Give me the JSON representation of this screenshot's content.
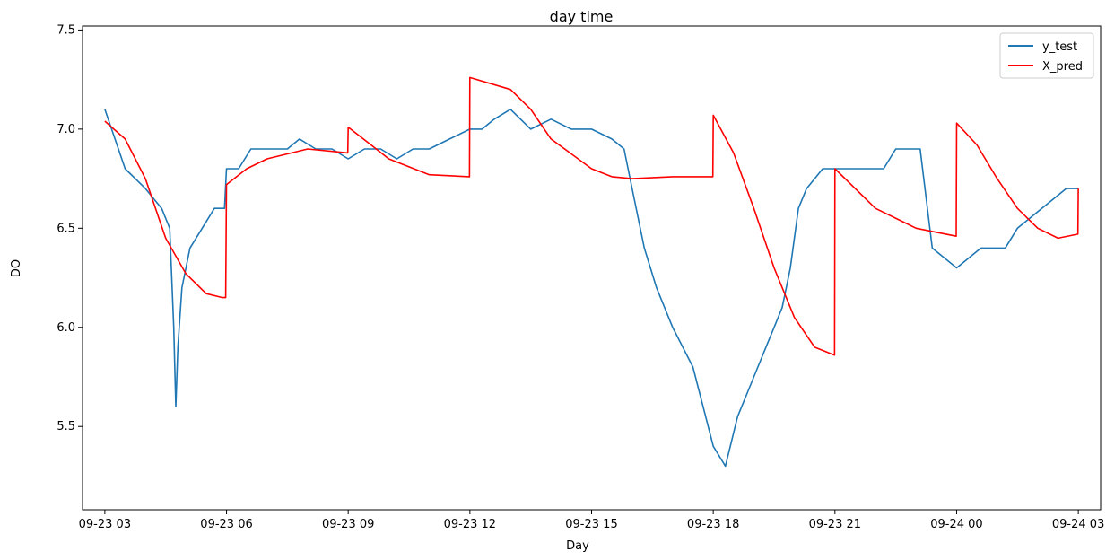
{
  "chart_data": {
    "type": "line",
    "title": "day time",
    "xlabel": "Day",
    "ylabel": "DO",
    "x_ticks": [
      "09-23 03",
      "09-23 06",
      "09-23 09",
      "09-23 12",
      "09-23 15",
      "09-23 18",
      "09-23 21",
      "09-24 00",
      "09-24 03"
    ],
    "y_ticks": [
      "5.5",
      "6.0",
      "6.5",
      "7.0",
      "7.5"
    ],
    "ylim": [
      5.08,
      7.52
    ],
    "xlim_hours": [
      -0.55,
      24.55
    ],
    "grid": false,
    "legend_position": "top-right",
    "series": [
      {
        "name": "y_test",
        "color": "#1f77b4",
        "x_hours": [
          0.0,
          0.5,
          1.0,
          1.4,
          1.6,
          1.7,
          1.75,
          1.8,
          1.9,
          2.1,
          2.4,
          2.7,
          2.95,
          3.0,
          3.3,
          3.6,
          3.9,
          4.2,
          4.5,
          4.8,
          5.2,
          5.6,
          6.0,
          6.4,
          6.8,
          7.2,
          7.6,
          8.0,
          8.5,
          9.0,
          9.3,
          9.6,
          10.0,
          10.5,
          11.0,
          11.5,
          12.0,
          12.5,
          12.8,
          13.0,
          13.3,
          13.6,
          14.0,
          14.5,
          15.0,
          15.3,
          15.6,
          15.9,
          16.1,
          16.3,
          16.5,
          16.7,
          16.9,
          17.1,
          17.3,
          17.5,
          17.7,
          17.9,
          18.0,
          18.3,
          18.6,
          18.9,
          19.2,
          19.5,
          19.8,
          20.1,
          20.4,
          20.7,
          21.0,
          21.3,
          21.6,
          21.9,
          22.2,
          22.5,
          22.8,
          23.1,
          23.4,
          23.7,
          24.0
        ],
        "values": [
          7.1,
          6.8,
          6.7,
          6.6,
          6.5,
          6.0,
          5.6,
          5.9,
          6.2,
          6.4,
          6.5,
          6.6,
          6.6,
          6.8,
          6.8,
          6.9,
          6.9,
          6.9,
          6.9,
          6.95,
          6.9,
          6.9,
          6.85,
          6.9,
          6.9,
          6.85,
          6.9,
          6.9,
          6.95,
          7.0,
          7.0,
          7.05,
          7.1,
          7.0,
          7.05,
          7.0,
          7.0,
          6.95,
          6.9,
          6.7,
          6.4,
          6.2,
          6.0,
          5.8,
          5.4,
          5.3,
          5.55,
          5.7,
          5.8,
          5.9,
          6.0,
          6.1,
          6.3,
          6.6,
          6.7,
          6.75,
          6.8,
          6.8,
          6.8,
          6.8,
          6.8,
          6.8,
          6.8,
          6.9,
          6.9,
          6.9,
          6.4,
          6.35,
          6.3,
          6.35,
          6.4,
          6.4,
          6.4,
          6.5,
          6.55,
          6.6,
          6.65,
          6.7,
          6.7
        ]
      },
      {
        "name": "X_pred",
        "color": "#ff0000",
        "x_hours": [
          0.0,
          0.5,
          1.0,
          1.5,
          2.0,
          2.5,
          2.9,
          2.98,
          3.0,
          3.5,
          4.0,
          5.0,
          5.99,
          6.0,
          6.5,
          7.0,
          8.0,
          8.99,
          9.0,
          10.0,
          10.5,
          11.0,
          12.0,
          12.5,
          13.0,
          14.0,
          14.99,
          15.0,
          15.5,
          16.0,
          16.5,
          17.0,
          17.5,
          17.99,
          18.0,
          18.5,
          19.0,
          20.0,
          20.99,
          21.0,
          21.5,
          22.0,
          22.5,
          23.0,
          23.5,
          23.99,
          24.0
        ],
        "values": [
          7.04,
          6.95,
          6.75,
          6.45,
          6.27,
          6.17,
          6.15,
          6.15,
          6.72,
          6.8,
          6.85,
          6.9,
          6.88,
          7.01,
          6.93,
          6.85,
          6.77,
          6.76,
          7.26,
          7.2,
          7.1,
          6.95,
          6.8,
          6.76,
          6.75,
          6.76,
          6.76,
          7.07,
          6.88,
          6.6,
          6.3,
          6.05,
          5.9,
          5.86,
          6.8,
          6.7,
          6.6,
          6.5,
          6.46,
          7.03,
          6.92,
          6.75,
          6.6,
          6.5,
          6.45,
          6.47,
          6.7
        ]
      }
    ],
    "legend": [
      {
        "name": "y_test",
        "color": "#1f77b4"
      },
      {
        "name": "X_pred",
        "color": "#ff0000"
      }
    ]
  }
}
